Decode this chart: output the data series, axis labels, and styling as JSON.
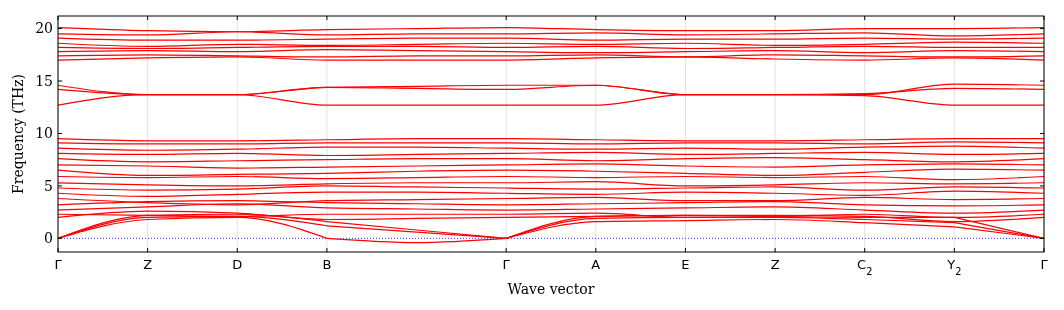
{
  "chart_data": {
    "type": "line",
    "xlabel": "Wave vector",
    "ylabel": "Frequency (THz)",
    "categories": [
      "Γ",
      "Z",
      "D",
      "B",
      null,
      "Γ",
      "A",
      "E",
      "Z",
      "C$_{2}$",
      "Y$_{2}$",
      "Γ"
    ],
    "ylim": [
      -1.3,
      21.2
    ],
    "yticks": [
      0,
      5,
      10,
      15,
      20
    ],
    "grid": "x",
    "ref_lines": [
      {
        "axis": "y",
        "value": 0,
        "color": "#0000ff",
        "line_style": "dotted"
      }
    ],
    "series": [
      {
        "color": "#ff0000",
        "values": [
          0,
          1.8,
          2.0,
          0,
          null,
          null,
          null,
          null,
          null,
          null,
          null,
          null
        ]
      },
      {
        "color": "#ff0000",
        "values": [
          null,
          null,
          null,
          0,
          -0.4,
          0,
          null,
          null,
          null,
          null,
          null,
          null
        ]
      },
      {
        "color": "#ff0000",
        "values": [
          null,
          null,
          null,
          null,
          null,
          0,
          1.6,
          1.7,
          1.8,
          1.5,
          1.1,
          null
        ]
      },
      {
        "color": "#ff0000",
        "values": [
          null,
          null,
          null,
          null,
          null,
          null,
          null,
          null,
          null,
          null,
          1.1,
          0
        ]
      },
      {
        "color": "#ff0000",
        "values": [
          0,
          2.0,
          2.1,
          1.2,
          null,
          null,
          null,
          null,
          null,
          null,
          null,
          null
        ]
      },
      {
        "color": "#ff0000",
        "values": [
          null,
          null,
          null,
          1.2,
          0.6,
          0,
          null,
          null,
          null,
          null,
          null,
          null
        ]
      },
      {
        "color": "#ff0000",
        "values": [
          null,
          null,
          null,
          null,
          null,
          0,
          1.9,
          2.0,
          2.0,
          1.8,
          1.5,
          null
        ]
      },
      {
        "color": "#ff0000",
        "values": [
          null,
          null,
          null,
          null,
          null,
          null,
          null,
          null,
          null,
          null,
          1.5,
          0
        ]
      },
      {
        "color": "#ff0000",
        "values": [
          0,
          2.2,
          2.3,
          1.6,
          null,
          null,
          null,
          null,
          null,
          null,
          null,
          null
        ]
      },
      {
        "color": "#ff0000",
        "values": [
          null,
          null,
          null,
          1.6,
          0.8,
          0,
          null,
          null,
          null,
          null,
          null,
          null
        ]
      },
      {
        "color": "#ff0000",
        "values": [
          null,
          null,
          null,
          null,
          null,
          0,
          2.1,
          2.2,
          2.1,
          2.0,
          2.0,
          null
        ]
      },
      {
        "color": "#ff0000",
        "values": [
          null,
          null,
          null,
          null,
          null,
          null,
          null,
          null,
          null,
          null,
          2.0,
          0
        ]
      },
      {
        "color": "#ff0000",
        "values": [
          2.0,
          2.6,
          2.4,
          1.8,
          1.9,
          2.0,
          2.1,
          2.2,
          2.2,
          2.1,
          1.6,
          2.0
        ]
      },
      {
        "color": "#ff0000",
        "values": [
          2.3,
          2.2,
          2.1,
          2.3,
          2.3,
          2.3,
          2.4,
          2.0,
          2.1,
          2.3,
          2.0,
          2.3
        ]
      },
      {
        "color": "#ff0000",
        "values": [
          2.7,
          3.0,
          3.3,
          2.9,
          2.8,
          2.7,
          2.8,
          2.9,
          3.0,
          2.7,
          2.4,
          2.7
        ]
      },
      {
        "color": "#ff0000",
        "values": [
          3.2,
          3.5,
          3.6,
          3.4,
          3.3,
          3.2,
          3.3,
          3.4,
          3.5,
          3.2,
          3.1,
          3.2
        ]
      },
      {
        "color": "#ff0000",
        "values": [
          3.8,
          3.4,
          3.2,
          3.6,
          3.7,
          3.8,
          3.9,
          3.6,
          3.6,
          3.9,
          3.7,
          3.8
        ]
      },
      {
        "color": "#ff0000",
        "values": [
          4.3,
          4.0,
          4.2,
          4.4,
          4.4,
          4.3,
          4.2,
          4.4,
          4.3,
          4.1,
          4.5,
          4.3
        ]
      },
      {
        "color": "#ff0000",
        "values": [
          4.8,
          4.6,
          4.7,
          5.0,
          4.9,
          4.8,
          4.7,
          4.8,
          4.9,
          4.6,
          4.9,
          4.8
        ]
      },
      {
        "color": "#ff0000",
        "values": [
          5.3,
          5.1,
          5.0,
          5.2,
          5.3,
          5.3,
          5.4,
          5.0,
          5.1,
          5.3,
          5.2,
          5.3
        ]
      },
      {
        "color": "#ff0000",
        "values": [
          5.9,
          5.8,
          5.9,
          5.7,
          5.8,
          5.9,
          5.8,
          5.9,
          5.8,
          5.9,
          5.6,
          5.9
        ]
      },
      {
        "color": "#ff0000",
        "values": [
          6.5,
          6.0,
          6.1,
          6.2,
          6.4,
          6.5,
          6.4,
          6.2,
          6.0,
          6.3,
          6.6,
          6.5
        ]
      },
      {
        "color": "#ff0000",
        "values": [
          7.0,
          6.9,
          6.7,
          6.8,
          6.9,
          7.0,
          7.1,
          6.9,
          6.8,
          7.0,
          7.1,
          7.0
        ]
      },
      {
        "color": "#ff0000",
        "values": [
          7.6,
          7.3,
          7.4,
          7.5,
          7.6,
          7.6,
          7.4,
          7.6,
          7.7,
          7.5,
          7.3,
          7.6
        ]
      },
      {
        "color": "#ff0000",
        "values": [
          8.1,
          8.0,
          8.1,
          7.9,
          8.0,
          8.1,
          8.2,
          8.0,
          8.1,
          8.2,
          8.0,
          8.1
        ]
      },
      {
        "color": "#ff0000",
        "values": [
          8.6,
          8.4,
          8.5,
          8.7,
          8.7,
          8.6,
          8.5,
          8.6,
          8.5,
          8.7,
          8.8,
          8.6
        ]
      },
      {
        "color": "#ff0000",
        "values": [
          9.1,
          9.0,
          9.0,
          9.1,
          9.1,
          9.1,
          9.0,
          9.1,
          9.1,
          9.0,
          9.2,
          9.1
        ]
      },
      {
        "color": "#ff0000",
        "values": [
          9.5,
          9.3,
          9.3,
          9.4,
          9.5,
          9.5,
          9.4,
          9.3,
          9.3,
          9.4,
          9.5,
          9.5
        ]
      },
      {
        "color": "#ff0000",
        "values": [
          12.7,
          13.7,
          13.7,
          12.7,
          12.7,
          12.7,
          12.7,
          13.7,
          13.7,
          13.6,
          12.7,
          12.7
        ]
      },
      {
        "color": "#ff0000",
        "values": [
          14.2,
          13.7,
          13.7,
          14.4,
          14.3,
          14.2,
          14.6,
          13.7,
          13.7,
          13.8,
          14.3,
          14.2
        ]
      },
      {
        "color": "#ff0000",
        "values": [
          14.6,
          13.7,
          13.7,
          14.4,
          14.5,
          14.6,
          14.6,
          13.7,
          13.7,
          13.7,
          14.7,
          14.6
        ]
      },
      {
        "color": "#ff0000",
        "values": [
          17.0,
          17.2,
          17.3,
          17.0,
          17.0,
          17.0,
          17.2,
          17.3,
          17.1,
          17.0,
          17.2,
          17.0
        ]
      },
      {
        "color": "#ff0000",
        "values": [
          17.4,
          17.5,
          17.4,
          17.3,
          17.4,
          17.4,
          17.5,
          17.3,
          17.5,
          17.4,
          17.3,
          17.4
        ]
      },
      {
        "color": "#ff0000",
        "values": [
          17.8,
          17.9,
          17.8,
          18.0,
          17.9,
          17.8,
          17.7,
          17.8,
          17.9,
          17.7,
          17.9,
          17.8
        ]
      },
      {
        "color": "#ff0000",
        "values": [
          18.2,
          18.1,
          18.2,
          18.3,
          18.3,
          18.2,
          18.3,
          18.1,
          18.2,
          18.3,
          18.2,
          18.2
        ]
      },
      {
        "color": "#ff0000",
        "values": [
          18.6,
          18.3,
          18.5,
          18.4,
          18.5,
          18.6,
          18.5,
          18.6,
          18.4,
          18.5,
          18.7,
          18.6
        ]
      },
      {
        "color": "#ff0000",
        "values": [
          19.1,
          18.9,
          18.9,
          19.0,
          19.1,
          19.1,
          18.9,
          19.0,
          19.0,
          19.1,
          19.0,
          19.1
        ]
      },
      {
        "color": "#ff0000",
        "values": [
          19.5,
          19.4,
          19.7,
          19.4,
          19.5,
          19.5,
          19.6,
          19.4,
          19.5,
          19.6,
          19.3,
          19.5
        ]
      },
      {
        "color": "#ff0000",
        "values": [
          20.1,
          19.8,
          19.7,
          19.9,
          20.0,
          20.1,
          19.9,
          19.8,
          19.8,
          20.0,
          20.0,
          20.1
        ]
      }
    ]
  }
}
